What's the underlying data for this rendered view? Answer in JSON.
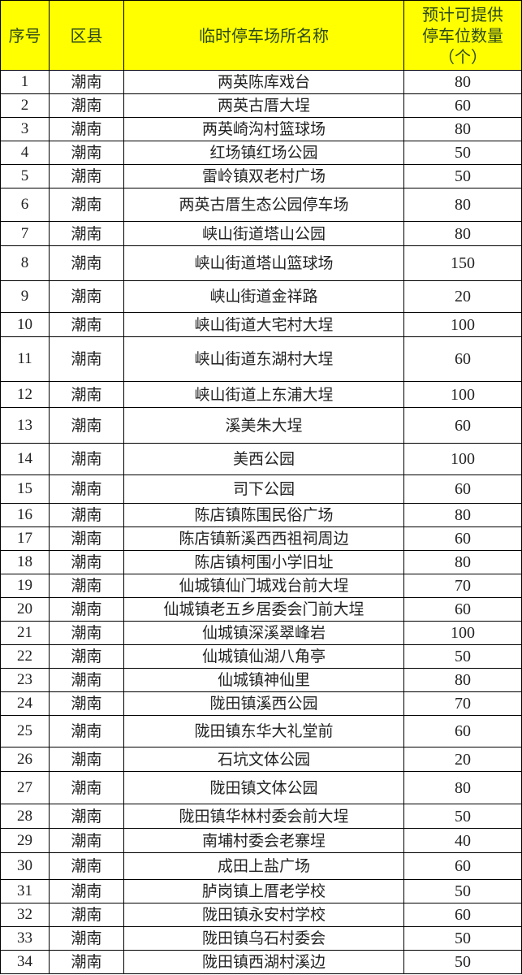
{
  "headers": [
    "序号",
    "区县",
    "临时停车场所名称",
    "预计可提供停车位数量（个）"
  ],
  "header_lines": {
    "capacity": [
      "预计可提供",
      "停车位数量",
      "（个）"
    ]
  },
  "colors": {
    "header_bg": "#ffff00"
  },
  "rows": [
    {
      "seq": "1",
      "district": "潮南",
      "name": "两英陈库戏台",
      "spaces": "80"
    },
    {
      "seq": "2",
      "district": "潮南",
      "name": "两英古厝大埕",
      "spaces": "60"
    },
    {
      "seq": "3",
      "district": "潮南",
      "name": "两英崎沟村篮球场",
      "spaces": "80"
    },
    {
      "seq": "4",
      "district": "潮南",
      "name": "红场镇红场公园",
      "spaces": "50"
    },
    {
      "seq": "5",
      "district": "潮南",
      "name": "雷岭镇双老村广场",
      "spaces": "50"
    },
    {
      "seq": "6",
      "district": "潮南",
      "name": "两英古厝生态公园停车场",
      "spaces": "80"
    },
    {
      "seq": "7",
      "district": "潮南",
      "name": "峡山街道塔山公园",
      "spaces": "80"
    },
    {
      "seq": "8",
      "district": "潮南",
      "name": "峡山街道塔山篮球场",
      "spaces": "150"
    },
    {
      "seq": "9",
      "district": "潮南",
      "name": "峡山街道金祥路",
      "spaces": "20"
    },
    {
      "seq": "10",
      "district": "潮南",
      "name": "峡山街道大宅村大埕",
      "spaces": "100"
    },
    {
      "seq": "11",
      "district": "潮南",
      "name": "峡山街道东湖村大埕",
      "spaces": "60"
    },
    {
      "seq": "12",
      "district": "潮南",
      "name": "峡山街道上东浦大埕",
      "spaces": "100"
    },
    {
      "seq": "13",
      "district": "潮南",
      "name": "溪美朱大埕",
      "spaces": "60"
    },
    {
      "seq": "14",
      "district": "潮南",
      "name": "美西公园",
      "spaces": "100"
    },
    {
      "seq": "15",
      "district": "潮南",
      "name": "司下公园",
      "spaces": "60"
    },
    {
      "seq": "16",
      "district": "潮南",
      "name": "陈店镇陈围民俗广场",
      "spaces": "80"
    },
    {
      "seq": "17",
      "district": "潮南",
      "name": "陈店镇新溪西西祖祠周边",
      "spaces": "60"
    },
    {
      "seq": "18",
      "district": "潮南",
      "name": "陈店镇柯围小学旧址",
      "spaces": "80"
    },
    {
      "seq": "19",
      "district": "潮南",
      "name": "仙城镇仙门城戏台前大埕",
      "spaces": "70"
    },
    {
      "seq": "20",
      "district": "潮南",
      "name": "仙城镇老五乡居委会门前大埕",
      "spaces": "60"
    },
    {
      "seq": "21",
      "district": "潮南",
      "name": "仙城镇深溪翠峰岩",
      "spaces": "100"
    },
    {
      "seq": "22",
      "district": "潮南",
      "name": "仙城镇仙湖八角亭",
      "spaces": "50"
    },
    {
      "seq": "23",
      "district": "潮南",
      "name": "仙城镇神仙里",
      "spaces": "80"
    },
    {
      "seq": "24",
      "district": "潮南",
      "name": "陇田镇溪西公园",
      "spaces": "70"
    },
    {
      "seq": "25",
      "district": "潮南",
      "name": "陇田镇东华大礼堂前",
      "spaces": "60"
    },
    {
      "seq": "26",
      "district": "潮南",
      "name": "石坑文体公园",
      "spaces": "20"
    },
    {
      "seq": "27",
      "district": "潮南",
      "name": "陇田镇文体公园",
      "spaces": "80"
    },
    {
      "seq": "28",
      "district": "潮南",
      "name": "陇田镇华林村委会前大埕",
      "spaces": "50"
    },
    {
      "seq": "29",
      "district": "潮南",
      "name": "南埔村委会老寨埕",
      "spaces": "40"
    },
    {
      "seq": "30",
      "district": "潮南",
      "name": "成田上盐广场",
      "spaces": "60"
    },
    {
      "seq": "31",
      "district": "潮南",
      "name": "胪岗镇上厝老学校",
      "spaces": "50"
    },
    {
      "seq": "32",
      "district": "潮南",
      "name": "陇田镇永安村学校",
      "spaces": "60"
    },
    {
      "seq": "33",
      "district": "潮南",
      "name": "陇田镇乌石村委会",
      "spaces": "50"
    },
    {
      "seq": "34",
      "district": "潮南",
      "name": "陇田镇西湖村溪边",
      "spaces": "50"
    }
  ]
}
